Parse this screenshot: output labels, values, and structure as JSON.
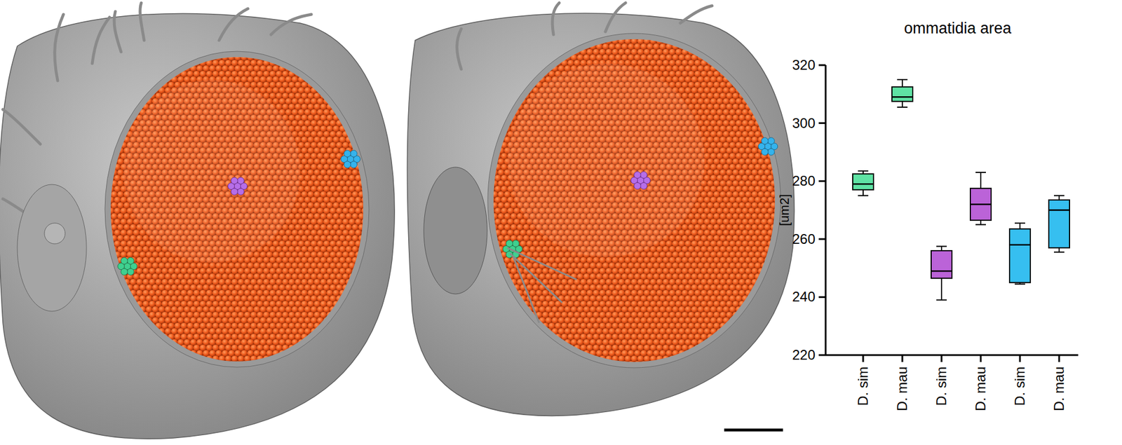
{
  "chart_data": {
    "type": "box",
    "title": "ommatidia area",
    "y_label": "[um2]",
    "categories": [
      "D. sim",
      "D. mau",
      "D. sim",
      "D. mau",
      "D. sim",
      "D. mau"
    ],
    "colors": [
      "#5fe3a4",
      "#5fe3a4",
      "#bb63d8",
      "#bb63d8",
      "#36bff0",
      "#36bff0"
    ],
    "min": [
      275,
      305.5,
      239,
      265,
      244.5,
      255.5
    ],
    "q1": [
      277,
      307.5,
      246.5,
      266.5,
      245,
      257
    ],
    "median": [
      279,
      309,
      249,
      272,
      258,
      270
    ],
    "q3": [
      282.5,
      312.5,
      256,
      277.5,
      263.5,
      273.5
    ],
    "max": [
      283.5,
      315,
      257.5,
      283,
      265.5,
      275
    ],
    "ylim": [
      220,
      320
    ],
    "yticks": [
      220,
      240,
      260,
      280,
      300,
      320
    ],
    "grid": false
  }
}
